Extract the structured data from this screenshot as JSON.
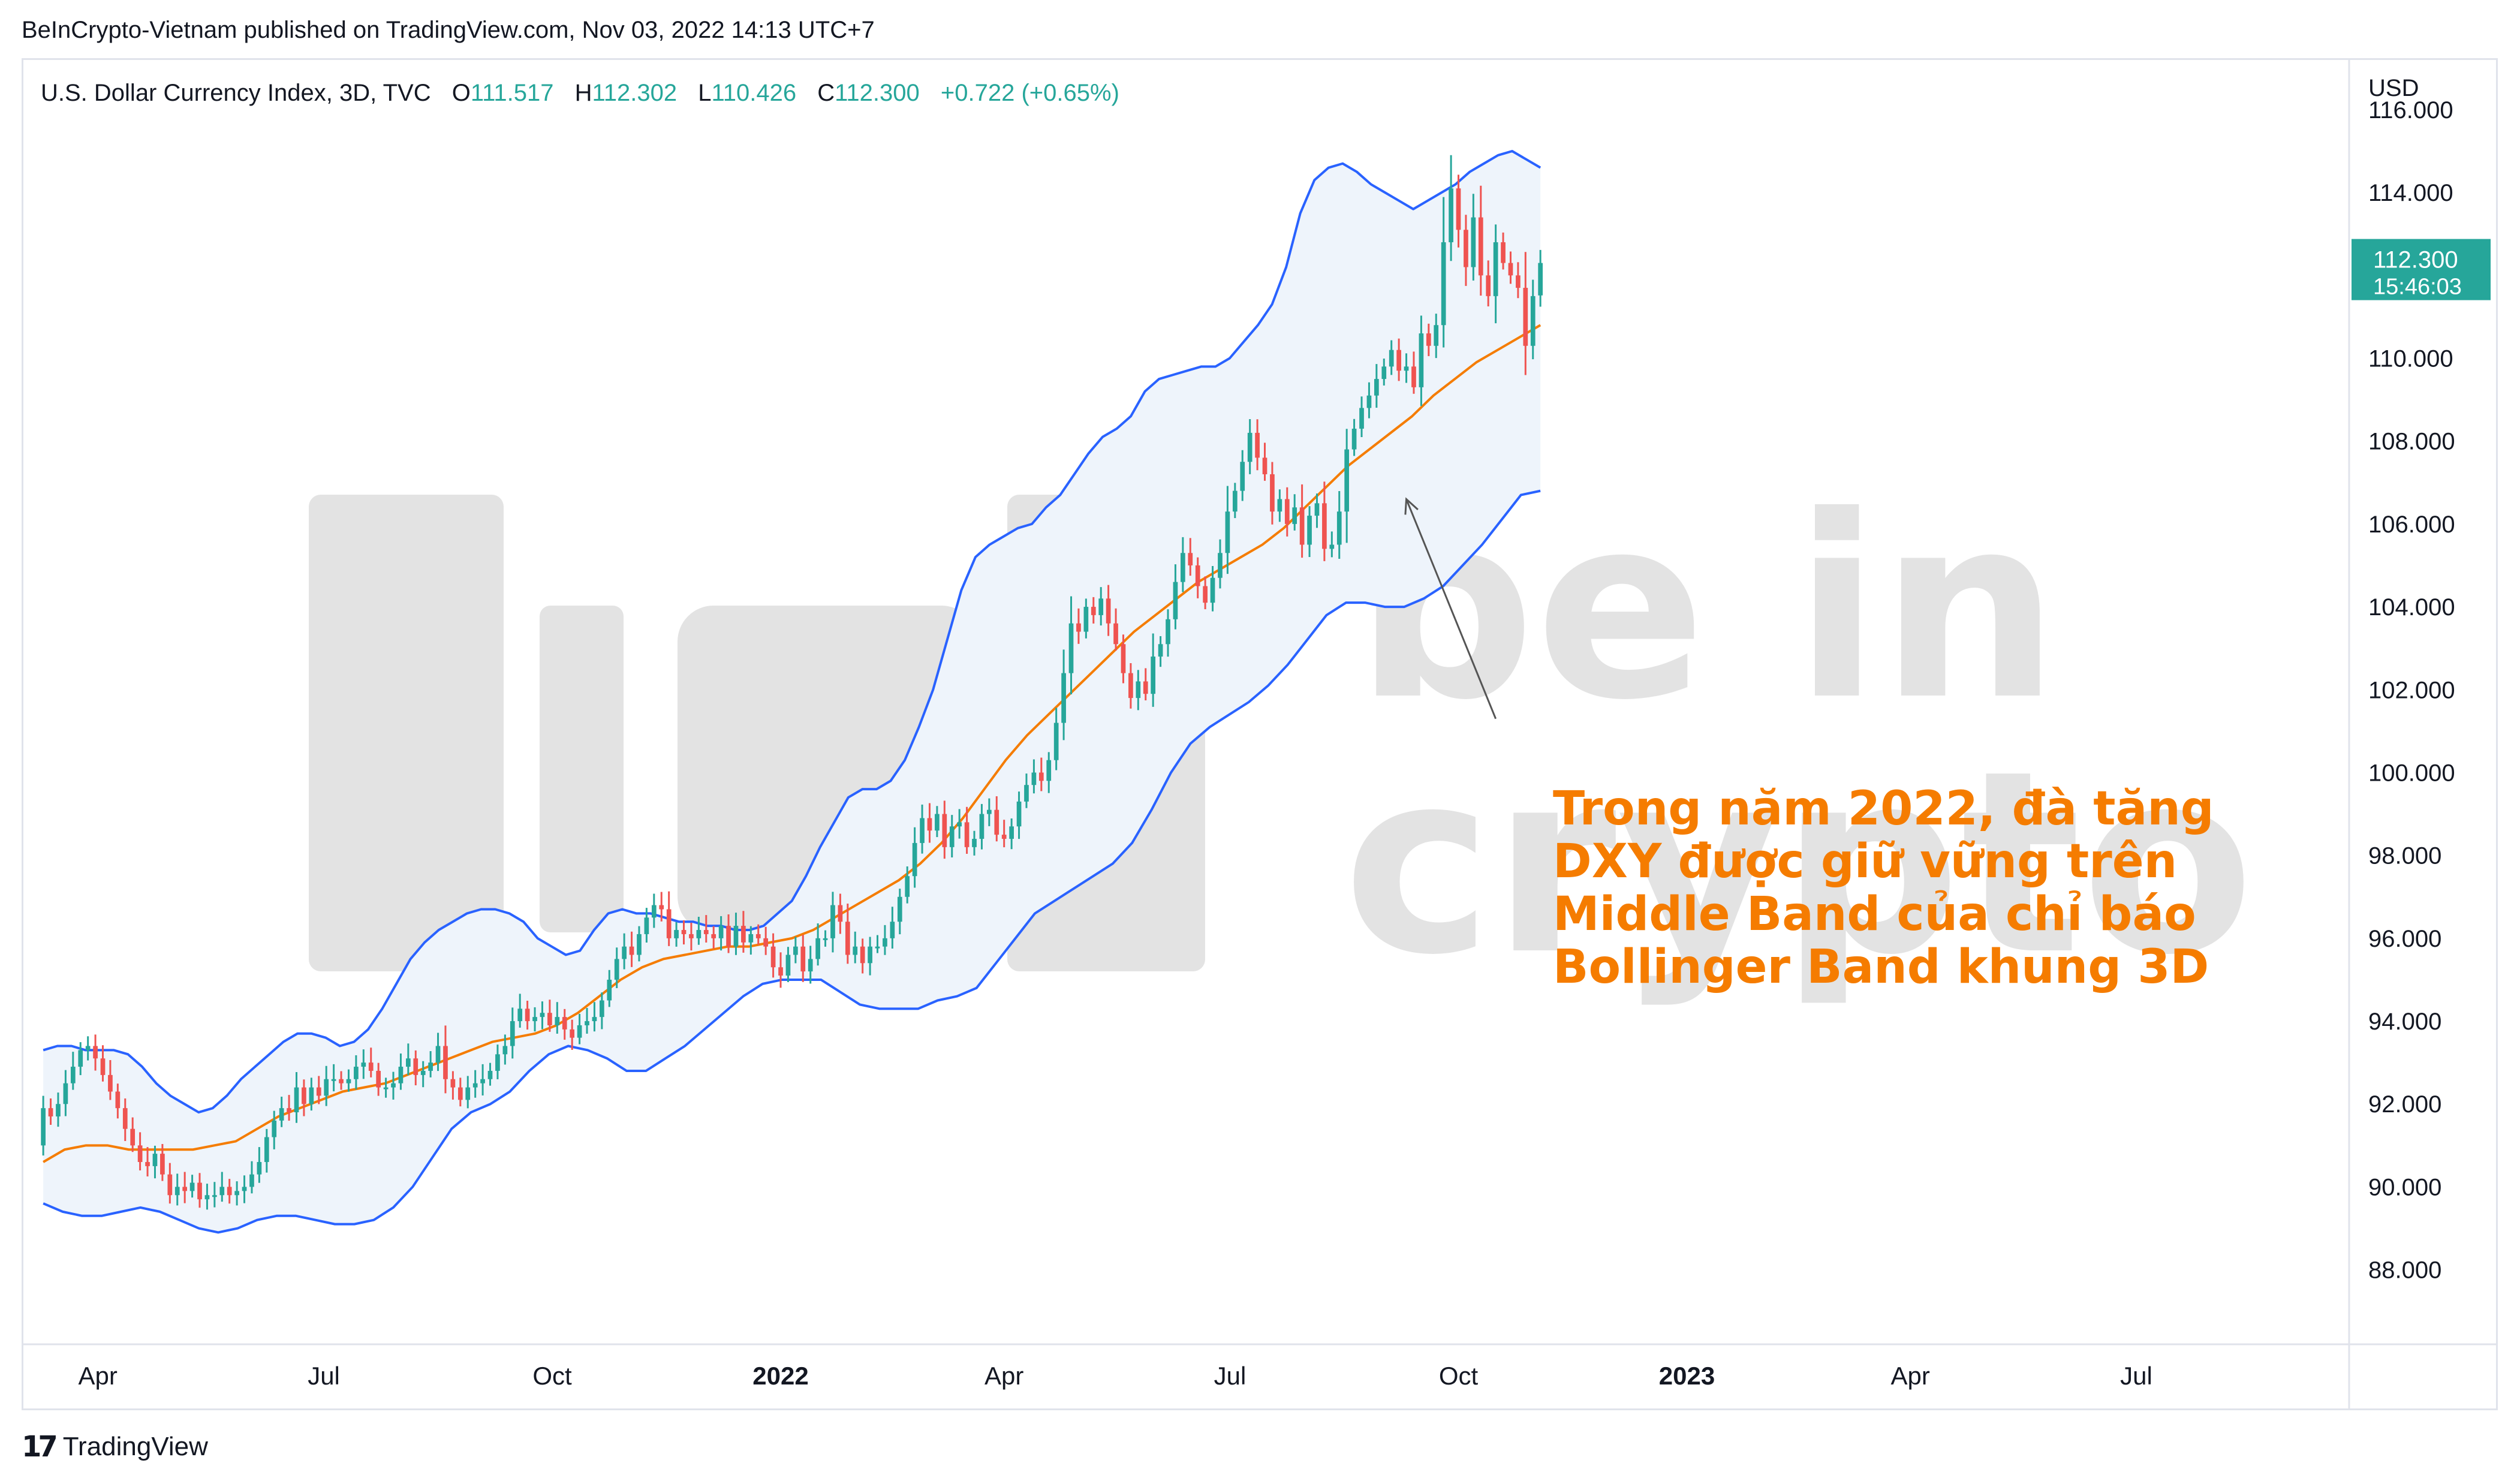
{
  "publisher_line": "BeInCrypto-Vietnam published on TradingView.com, Nov 03, 2022 14:13 UTC+7",
  "header": {
    "symbol": "U.S. Dollar Currency Index, 3D, TVC",
    "o_label": "O",
    "o_value": "111.517",
    "h_label": "H",
    "h_value": "112.302",
    "l_label": "L",
    "l_value": "110.426",
    "c_label": "C",
    "c_value": "112.300",
    "change": "+0.722 (+0.65%)"
  },
  "price_tag": {
    "price": "112.300",
    "countdown": "15:46:03"
  },
  "annotation": [
    "Trong năm 2022, đà tăng",
    "DXY được giữ vững trên",
    "Middle Band của chỉ báo",
    "Bollinger Band khung 3D"
  ],
  "watermark": {
    "brand_top": "be in",
    "brand_bottom": "crypto"
  },
  "footer": {
    "brand": "TradingView"
  },
  "colors": {
    "up": "#26a69a",
    "down": "#ef5350",
    "band_outer": "#2962ff",
    "band_middle": "#f57c00",
    "band_fill": "#eef4fb",
    "annotation": "#f57c00",
    "price_tag": "#26a69a",
    "watermark": "#e3e3e3"
  },
  "chart_data": {
    "type": "candlestick",
    "currency_label": "USD",
    "indicator": "Bollinger Bands",
    "ylim": [
      86.2,
      117.2
    ],
    "yticks": [
      "88.000",
      "90.000",
      "92.000",
      "94.000",
      "96.000",
      "98.000",
      "100.000",
      "102.000",
      "104.000",
      "106.000",
      "108.000",
      "110.000",
      "112.000",
      "114.000",
      "116.000"
    ],
    "x_start": "2021-03-02",
    "x_end": "2023-09-24",
    "xticks": [
      {
        "label": "Apr",
        "date": "2021-04-01",
        "bold": false
      },
      {
        "label": "Jul",
        "date": "2021-07-01",
        "bold": false
      },
      {
        "label": "Oct",
        "date": "2021-10-01",
        "bold": false
      },
      {
        "label": "2022",
        "date": "2022-01-01",
        "bold": true
      },
      {
        "label": "Apr",
        "date": "2022-04-01",
        "bold": false
      },
      {
        "label": "Jul",
        "date": "2022-07-01",
        "bold": false
      },
      {
        "label": "Oct",
        "date": "2022-10-01",
        "bold": false
      },
      {
        "label": "2023",
        "date": "2023-01-01",
        "bold": true
      },
      {
        "label": "Apr",
        "date": "2023-04-01",
        "bold": false
      },
      {
        "label": "Jul",
        "date": "2023-07-01",
        "bold": false
      }
    ],
    "last_candle_date": "2022-11-03",
    "candle_interval_days": 3,
    "closes": [
      91.9,
      91.7,
      92.0,
      92.5,
      92.9,
      93.3,
      93.4,
      93.1,
      92.7,
      92.3,
      91.9,
      91.4,
      91.0,
      90.6,
      90.5,
      90.8,
      90.3,
      89.8,
      90.0,
      89.9,
      90.1,
      89.7,
      89.8,
      89.8,
      90.0,
      89.8,
      89.9,
      90.0,
      90.3,
      90.6,
      91.2,
      91.6,
      91.9,
      91.8,
      92.4,
      92.0,
      92.4,
      92.2,
      92.6,
      92.6,
      92.5,
      92.6,
      92.9,
      93.0,
      92.8,
      92.4,
      92.4,
      92.5,
      92.9,
      93.1,
      92.7,
      92.8,
      93.0,
      93.4,
      92.6,
      92.4,
      92.1,
      92.4,
      92.5,
      92.6,
      92.8,
      93.2,
      93.4,
      94.0,
      94.3,
      94.0,
      94.1,
      94.2,
      93.9,
      94.1,
      93.8,
      93.6,
      93.9,
      94.0,
      94.1,
      94.5,
      95.0,
      95.5,
      95.8,
      95.6,
      96.1,
      96.5,
      96.8,
      96.7,
      96.0,
      96.2,
      96.1,
      96.0,
      96.2,
      96.1,
      96.0,
      96.3,
      95.8,
      96.3,
      95.9,
      96.1,
      96.0,
      95.8,
      95.3,
      95.1,
      95.6,
      95.8,
      95.2,
      95.5,
      96.0,
      96.0,
      96.8,
      96.4,
      95.6,
      95.8,
      95.4,
      95.8,
      95.8,
      96.0,
      96.4,
      97.0,
      97.5,
      98.3,
      98.9,
      98.6,
      99.0,
      98.2,
      98.7,
      98.8,
      98.2,
      98.4,
      99.0,
      99.1,
      98.5,
      98.4,
      98.7,
      99.3,
      99.7,
      100.0,
      99.8,
      100.3,
      101.2,
      102.4,
      103.6,
      103.4,
      104.0,
      103.8,
      104.2,
      103.6,
      103.1,
      102.4,
      101.8,
      102.2,
      101.9,
      102.8,
      103.1,
      103.7,
      104.6,
      105.3,
      105.0,
      104.5,
      104.1,
      104.7,
      105.3,
      106.3,
      106.8,
      107.5,
      108.2,
      107.6,
      107.2,
      106.3,
      106.6,
      106.0,
      106.4,
      105.5,
      106.2,
      106.5,
      105.4,
      105.5,
      106.3,
      107.8,
      108.3,
      108.8,
      109.1,
      109.5,
      109.8,
      110.2,
      109.7,
      109.8,
      109.3,
      110.6,
      110.3,
      110.8,
      112.8,
      114.1,
      113.1,
      112.2,
      113.4,
      112.0,
      111.5,
      112.8,
      112.3,
      112.0,
      111.7,
      110.3,
      111.5,
      112.3
    ],
    "opens": [
      91.0,
      91.9,
      91.7,
      92.0,
      92.5,
      92.9,
      93.3,
      93.4,
      93.1,
      92.7,
      92.3,
      91.9,
      91.4,
      91.0,
      90.6,
      90.5,
      90.8,
      90.3,
      89.8,
      90.0,
      89.9,
      90.1,
      89.7,
      89.8,
      89.8,
      90.0,
      89.8,
      89.9,
      90.0,
      90.3,
      90.6,
      91.2,
      91.6,
      91.9,
      91.8,
      92.4,
      92.0,
      92.4,
      92.2,
      92.6,
      92.6,
      92.5,
      92.6,
      92.9,
      93.0,
      92.8,
      92.4,
      92.4,
      92.5,
      92.9,
      93.1,
      92.7,
      92.8,
      93.0,
      93.4,
      92.6,
      92.4,
      92.1,
      92.4,
      92.5,
      92.6,
      92.8,
      93.2,
      93.4,
      94.0,
      94.3,
      94.0,
      94.1,
      94.2,
      93.9,
      94.1,
      93.8,
      93.6,
      93.9,
      94.0,
      94.1,
      94.5,
      95.0,
      95.5,
      95.8,
      95.6,
      96.1,
      96.5,
      96.8,
      96.7,
      96.0,
      96.2,
      96.1,
      96.0,
      96.2,
      96.1,
      96.0,
      96.3,
      95.8,
      96.3,
      95.9,
      96.1,
      96.0,
      95.8,
      95.3,
      95.1,
      95.6,
      95.8,
      95.2,
      95.5,
      96.0,
      96.0,
      96.8,
      96.4,
      95.6,
      95.8,
      95.4,
      95.8,
      95.8,
      96.0,
      96.4,
      97.0,
      97.5,
      98.3,
      98.9,
      98.6,
      99.0,
      98.2,
      98.7,
      98.8,
      98.2,
      98.4,
      99.0,
      99.1,
      98.5,
      98.4,
      98.7,
      99.3,
      99.7,
      100.0,
      99.8,
      100.3,
      101.2,
      102.4,
      103.6,
      103.4,
      104.0,
      103.8,
      104.2,
      103.6,
      103.1,
      102.4,
      101.8,
      102.2,
      101.9,
      102.8,
      103.1,
      103.7,
      104.6,
      105.3,
      105.0,
      104.5,
      104.1,
      104.7,
      105.3,
      106.3,
      106.8,
      107.5,
      108.2,
      107.6,
      107.2,
      106.3,
      106.6,
      106.0,
      106.4,
      105.5,
      106.2,
      106.5,
      105.4,
      105.5,
      106.3,
      107.8,
      108.3,
      108.8,
      109.1,
      109.5,
      109.8,
      110.2,
      109.7,
      109.8,
      109.3,
      110.6,
      110.3,
      110.8,
      112.8,
      114.1,
      113.1,
      112.2,
      113.4,
      112.0,
      111.5,
      112.8,
      112.3,
      112.0,
      111.7,
      110.3,
      111.517
    ],
    "upper_band": [
      93.3,
      93.4,
      93.4,
      93.3,
      93.3,
      93.3,
      93.2,
      92.9,
      92.5,
      92.2,
      92.0,
      91.8,
      91.9,
      92.2,
      92.6,
      92.9,
      93.2,
      93.5,
      93.7,
      93.7,
      93.6,
      93.4,
      93.5,
      93.8,
      94.3,
      94.9,
      95.5,
      95.9,
      96.2,
      96.4,
      96.6,
      96.7,
      96.7,
      96.6,
      96.4,
      96.0,
      95.8,
      95.6,
      95.7,
      96.2,
      96.6,
      96.7,
      96.6,
      96.6,
      96.5,
      96.4,
      96.4,
      96.3,
      96.3,
      96.2,
      96.2,
      96.3,
      96.6,
      96.9,
      97.5,
      98.2,
      98.8,
      99.4,
      99.6,
      99.6,
      99.8,
      100.3,
      101.1,
      102.0,
      103.2,
      104.4,
      105.2,
      105.5,
      105.7,
      105.9,
      106.0,
      106.4,
      106.7,
      107.2,
      107.7,
      108.1,
      108.3,
      108.6,
      109.2,
      109.5,
      109.6,
      109.7,
      109.8,
      109.8,
      110.0,
      110.4,
      110.8,
      111.3,
      112.2,
      113.5,
      114.3,
      114.6,
      114.7,
      114.5,
      114.2,
      114.0,
      113.8,
      113.6,
      113.8,
      114.0,
      114.2,
      114.5,
      114.7,
      114.9,
      115.0,
      114.8,
      114.6
    ],
    "lower_band": [
      89.6,
      89.4,
      89.3,
      89.3,
      89.4,
      89.5,
      89.4,
      89.2,
      89.0,
      88.9,
      89.0,
      89.2,
      89.3,
      89.3,
      89.2,
      89.1,
      89.1,
      89.2,
      89.5,
      90.0,
      90.7,
      91.4,
      91.8,
      92.0,
      92.3,
      92.8,
      93.2,
      93.4,
      93.3,
      93.1,
      92.8,
      92.8,
      93.1,
      93.4,
      93.8,
      94.2,
      94.6,
      94.9,
      95.0,
      95.0,
      95.0,
      94.7,
      94.4,
      94.3,
      94.3,
      94.3,
      94.5,
      94.6,
      94.8,
      95.4,
      96.0,
      96.6,
      96.9,
      97.2,
      97.5,
      97.8,
      98.3,
      99.1,
      100.0,
      100.7,
      101.1,
      101.4,
      101.7,
      102.1,
      102.6,
      103.2,
      103.8,
      104.1,
      104.1,
      104.0,
      104.0,
      104.2,
      104.5,
      105.0,
      105.5,
      106.1,
      106.7,
      106.8
    ],
    "middle_band": [
      90.6,
      90.9,
      91.0,
      91.0,
      90.9,
      90.9,
      90.9,
      90.9,
      91.0,
      91.1,
      91.4,
      91.7,
      91.9,
      92.1,
      92.3,
      92.4,
      92.5,
      92.7,
      92.9,
      93.1,
      93.3,
      93.5,
      93.6,
      93.7,
      93.9,
      94.2,
      94.6,
      95.0,
      95.3,
      95.5,
      95.6,
      95.7,
      95.8,
      95.8,
      95.9,
      96.0,
      96.2,
      96.5,
      96.8,
      97.1,
      97.4,
      97.8,
      98.3,
      98.9,
      99.6,
      100.3,
      100.9,
      101.4,
      101.9,
      102.4,
      102.9,
      103.4,
      103.8,
      104.2,
      104.6,
      104.9,
      105.2,
      105.5,
      105.9,
      106.4,
      106.9,
      107.4,
      107.8,
      108.2,
      108.6,
      109.1,
      109.5,
      109.9,
      110.2,
      110.5,
      110.8
    ],
    "annotation_arrow": {
      "from": {
        "date": "2022-10-16",
        "price": 101.3
      },
      "to": {
        "date": "2022-09-10",
        "price": 106.6
      }
    }
  }
}
